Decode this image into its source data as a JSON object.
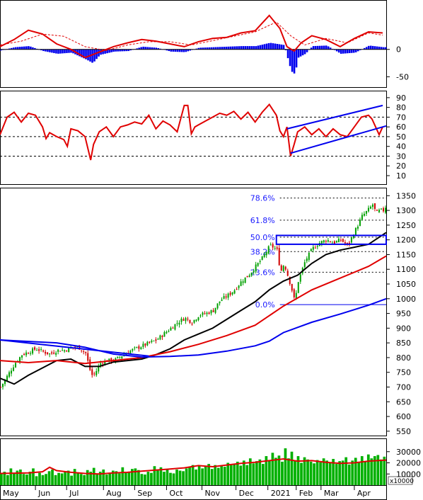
{
  "chart_data": [
    {
      "type": "line",
      "panel": "macd",
      "y_ticks": [
        "0",
        "-50"
      ],
      "series": [
        {
          "color": "#e00000",
          "style": "solid",
          "x": [
            0,
            20,
            40,
            60,
            80,
            100,
            120,
            140,
            160,
            180,
            200,
            220,
            240,
            260,
            280,
            300,
            320,
            340,
            360,
            380,
            395,
            405,
            415,
            425,
            440,
            460,
            480,
            500,
            520,
            540
          ],
          "values": [
            5,
            18,
            35,
            28,
            10,
            0,
            -15,
            -5,
            5,
            12,
            18,
            15,
            10,
            5,
            14,
            20,
            22,
            30,
            34,
            62,
            38,
            5,
            -3,
            12,
            25,
            18,
            5,
            20,
            32,
            30
          ]
        },
        {
          "color": "#e00000",
          "style": "dashed",
          "x": [
            0,
            30,
            60,
            90,
            120,
            150,
            180,
            210,
            240,
            270,
            300,
            330,
            360,
            390,
            410,
            430,
            460,
            490,
            520,
            540
          ],
          "values": [
            8,
            15,
            28,
            24,
            5,
            -2,
            8,
            14,
            14,
            8,
            16,
            24,
            32,
            50,
            25,
            8,
            20,
            12,
            30,
            26
          ]
        },
        {
          "color": "#0000ee",
          "style": "histogram",
          "x": [
            0,
            20,
            40,
            60,
            80,
            100,
            120,
            130,
            140,
            160,
            180,
            200,
            220,
            240,
            260,
            280,
            300,
            320,
            340,
            360,
            380,
            400,
            410,
            415,
            420,
            430,
            440,
            460,
            480,
            500,
            520,
            540
          ],
          "values": [
            -2,
            4,
            6,
            -3,
            -8,
            -6,
            -18,
            -25,
            -10,
            -4,
            -3,
            5,
            3,
            -4,
            -5,
            3,
            4,
            5,
            6,
            6,
            12,
            8,
            -40,
            -45,
            -15,
            -8,
            6,
            7,
            -8,
            -6,
            7,
            4
          ]
        }
      ],
      "ylim": [
        -65,
        85
      ]
    },
    {
      "type": "line",
      "panel": "rsi",
      "y_ticks": [
        "90",
        "80",
        "70",
        "60",
        "50",
        "40",
        "30",
        "20",
        "10"
      ],
      "ylim": [
        2,
        95
      ],
      "guide_levels": [
        70,
        50,
        30
      ],
      "series": [
        {
          "color": "#e00000",
          "x": [
            0,
            10,
            20,
            30,
            40,
            50,
            60,
            65,
            70,
            80,
            90,
            95,
            100,
            110,
            120,
            128,
            132,
            140,
            150,
            160,
            170,
            180,
            190,
            200,
            210,
            220,
            230,
            240,
            250,
            260,
            265,
            270,
            275,
            280,
            290,
            300,
            310,
            320,
            330,
            340,
            350,
            360,
            370,
            380,
            390,
            395,
            400,
            405,
            410,
            415,
            420,
            430,
            440,
            450,
            460,
            470,
            480,
            490,
            500,
            510,
            520,
            525,
            530,
            535,
            540
          ],
          "values": [
            52,
            70,
            75,
            65,
            74,
            72,
            60,
            48,
            54,
            50,
            47,
            40,
            58,
            56,
            50,
            26,
            42,
            55,
            60,
            50,
            60,
            62,
            65,
            63,
            72,
            58,
            66,
            62,
            55,
            82,
            82,
            53,
            60,
            62,
            66,
            70,
            74,
            72,
            76,
            68,
            75,
            65,
            75,
            83,
            72,
            56,
            50,
            60,
            30,
            42,
            55,
            60,
            52,
            58,
            50,
            58,
            52,
            50,
            60,
            70,
            72,
            68,
            60,
            52,
            60
          ]
        },
        {
          "color": "#0000ee",
          "role": "channel",
          "x": [
            405,
            540
          ],
          "values": [
            58,
            82
          ]
        },
        {
          "color": "#0000ee",
          "role": "channel",
          "x": [
            410,
            545
          ],
          "values": [
            33,
            61
          ]
        }
      ]
    },
    {
      "type": "candlestick",
      "panel": "price",
      "y_ticks": [
        "1350",
        "1300",
        "1250",
        "1200",
        "1150",
        "1100",
        "1050",
        "1000",
        "950",
        "900",
        "850",
        "800",
        "750",
        "700",
        "650",
        "600",
        "550"
      ],
      "ylim": [
        540,
        1370
      ],
      "fib_levels": [
        {
          "label": "78.6%",
          "value": 1342
        },
        {
          "label": "61.8%",
          "value": 1267
        },
        {
          "label": "50.0%",
          "value": 1209
        },
        {
          "label": "38.2%",
          "value": 1160
        },
        {
          "label": "23.6%",
          "value": 1090
        },
        {
          "label": "0.0%",
          "value": 980
        }
      ],
      "close": {
        "x": [
          0,
          10,
          20,
          30,
          40,
          50,
          60,
          70,
          80,
          90,
          100,
          110,
          120,
          128,
          133,
          140,
          150,
          160,
          170,
          180,
          190,
          200,
          210,
          220,
          230,
          240,
          250,
          260,
          270,
          280,
          290,
          300,
          310,
          320,
          330,
          340,
          350,
          360,
          370,
          380,
          385,
          390,
          395,
          400,
          405,
          410,
          415,
          420,
          430,
          440,
          450,
          460,
          470,
          480,
          490,
          500,
          510,
          520,
          525,
          530,
          535,
          540,
          545
        ],
        "values": [
          700,
          740,
          780,
          810,
          820,
          830,
          820,
          812,
          825,
          825,
          835,
          835,
          815,
          740,
          745,
          780,
          790,
          790,
          805,
          820,
          830,
          840,
          850,
          860,
          880,
          900,
          920,
          935,
          920,
          945,
          950,
          960,
          995,
          1010,
          1030,
          1060,
          1080,
          1110,
          1140,
          1180,
          1175,
          1165,
          1090,
          1120,
          1080,
          1040,
          990,
          1060,
          1130,
          1170,
          1190,
          1200,
          1190,
          1200,
          1180,
          1230,
          1280,
          1305,
          1320,
          1290,
          1300,
          1300,
          1320
        ]
      },
      "series": [
        {
          "name": "",
          "color": "#000000",
          "x": [
            0,
            20,
            40,
            60,
            80,
            100,
            120,
            140,
            160,
            180,
            200,
            220,
            240,
            260,
            280,
            300,
            320,
            340,
            360,
            380,
            400,
            420,
            440,
            460,
            480,
            500,
            520,
            545
          ],
          "values": [
            730,
            710,
            740,
            765,
            790,
            795,
            770,
            770,
            785,
            790,
            795,
            810,
            830,
            860,
            880,
            900,
            930,
            960,
            990,
            1030,
            1060,
            1080,
            1120,
            1150,
            1165,
            1175,
            1185,
            1225
          ]
        },
        {
          "name": "",
          "color": "#e00000",
          "x": [
            0,
            40,
            80,
            120,
            160,
            200,
            240,
            280,
            320,
            360,
            400,
            440,
            480,
            520,
            545
          ],
          "values": [
            790,
            783,
            790,
            780,
            790,
            800,
            820,
            845,
            875,
            910,
            975,
            1030,
            1070,
            1110,
            1145
          ]
        },
        {
          "name": "",
          "color": "#0000ee",
          "x": [
            0,
            40,
            80,
            120,
            160,
            200,
            240,
            280,
            320,
            360,
            380,
            400,
            440,
            480,
            520,
            545
          ],
          "values": [
            860,
            855,
            850,
            835,
            812,
            802,
            804,
            809,
            822,
            840,
            856,
            885,
            920,
            948,
            978,
            1000
          ]
        },
        {
          "name": "",
          "color": "#0000ee",
          "role": "trendline",
          "x": [
            0,
            210
          ],
          "values": [
            860,
            805
          ]
        }
      ],
      "annotations": [
        {
          "type": "box",
          "x": [
            390,
            545
          ],
          "y": [
            1185,
            1215
          ],
          "color": "#0000ee"
        },
        {
          "type": "hline",
          "x": [
            400,
            545
          ],
          "y": 980,
          "color": "#0000ee"
        }
      ]
    },
    {
      "type": "bar",
      "panel": "volume",
      "y_ticks": [
        "30000",
        "20000",
        "10000"
      ],
      "unit_label": "x10000",
      "ylim": [
        0,
        40000
      ],
      "bar_color": "#00b000",
      "bar_values": [
        10000,
        12000,
        9000,
        15000,
        11000,
        13000,
        14000,
        10000,
        9500,
        12000,
        15000,
        8000,
        11000,
        9000,
        10000,
        12500,
        14000,
        9000,
        11000,
        10500,
        12000,
        13000,
        8500,
        14500,
        11500,
        10000,
        9000,
        13500,
        12000,
        15500,
        10000,
        12000,
        14000,
        9500,
        11000,
        13000,
        12500,
        10500,
        16000,
        11000,
        12000,
        14500,
        15000,
        13500,
        10000,
        9500,
        12000,
        11000,
        17000,
        13000,
        16000,
        12000,
        14000,
        11000,
        10500,
        14000,
        13000,
        12500,
        15000,
        16000,
        18000,
        14000,
        17500,
        15000,
        16500,
        19000,
        14500,
        18000,
        15500,
        17000,
        16500,
        20000,
        18000,
        19000,
        21000,
        17500,
        22000,
        18000,
        24000,
        19500,
        21500,
        23000,
        19000,
        26000,
        22000,
        29000,
        24500,
        26500,
        21000,
        33000,
        24000,
        30000,
        22000,
        26000,
        20000,
        25000,
        23000,
        21000,
        19500,
        22500,
        20500,
        24000,
        22000,
        20000,
        23500,
        19000,
        21500,
        22000,
        25000,
        18500,
        22000,
        24500,
        20000,
        26000,
        21000,
        27500,
        24000,
        26000,
        27000,
        23000,
        25500
      ],
      "ma_x": [
        0,
        40,
        60,
        70,
        80,
        100,
        120,
        140,
        160,
        180,
        200,
        220,
        240,
        260,
        280,
        300,
        320,
        340,
        360,
        380,
        400,
        420,
        440,
        460,
        480,
        500,
        520,
        545
      ],
      "ma_values": [
        10500,
        11000,
        12000,
        16000,
        13000,
        11500,
        10500,
        10000,
        11000,
        11500,
        12500,
        13500,
        14500,
        15500,
        17500,
        16500,
        18000,
        19500,
        20500,
        22000,
        23500,
        21500,
        22000,
        20500,
        19500,
        20000,
        21500,
        22500
      ]
    }
  ],
  "x_axis": {
    "months": [
      "May",
      "Jun",
      "Jul",
      "Aug",
      "Sep",
      "Oct",
      "Nov",
      "Dec",
      "2021",
      "Feb",
      "Mar",
      "Apr"
    ]
  }
}
